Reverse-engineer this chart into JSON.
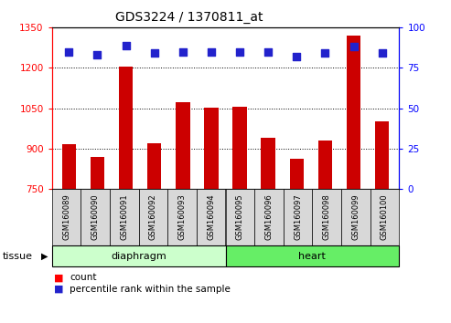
{
  "title": "GDS3224 / 1370811_at",
  "samples": [
    "GSM160089",
    "GSM160090",
    "GSM160091",
    "GSM160092",
    "GSM160093",
    "GSM160094",
    "GSM160095",
    "GSM160096",
    "GSM160097",
    "GSM160098",
    "GSM160099",
    "GSM160100"
  ],
  "counts": [
    915,
    868,
    1204,
    920,
    1072,
    1052,
    1055,
    940,
    862,
    930,
    1320,
    1000
  ],
  "percentiles": [
    85,
    83,
    89,
    84,
    85,
    85,
    85,
    85,
    82,
    84,
    88,
    84
  ],
  "ylim_left": [
    750,
    1350
  ],
  "ylim_right": [
    0,
    100
  ],
  "yticks_left": [
    750,
    900,
    1050,
    1200,
    1350
  ],
  "yticks_right": [
    0,
    25,
    50,
    75,
    100
  ],
  "bar_color": "#cc0000",
  "dot_color": "#2222cc",
  "bar_width": 0.5,
  "dot_size": 30,
  "dot_marker": "s",
  "background_color": "#ffffff",
  "plot_bg_color": "#ffffff",
  "tissue_label": "tissue",
  "legend_count": "count",
  "legend_pct": "percentile rank within the sample",
  "diaphragm_color": "#ccffcc",
  "heart_color": "#66ee66",
  "sample_box_color": "#d8d8d8",
  "title_fontsize": 10,
  "axis_fontsize": 7.5,
  "sample_fontsize": 6,
  "group_fontsize": 8,
  "legend_fontsize": 7.5,
  "tissue_fontsize": 8
}
